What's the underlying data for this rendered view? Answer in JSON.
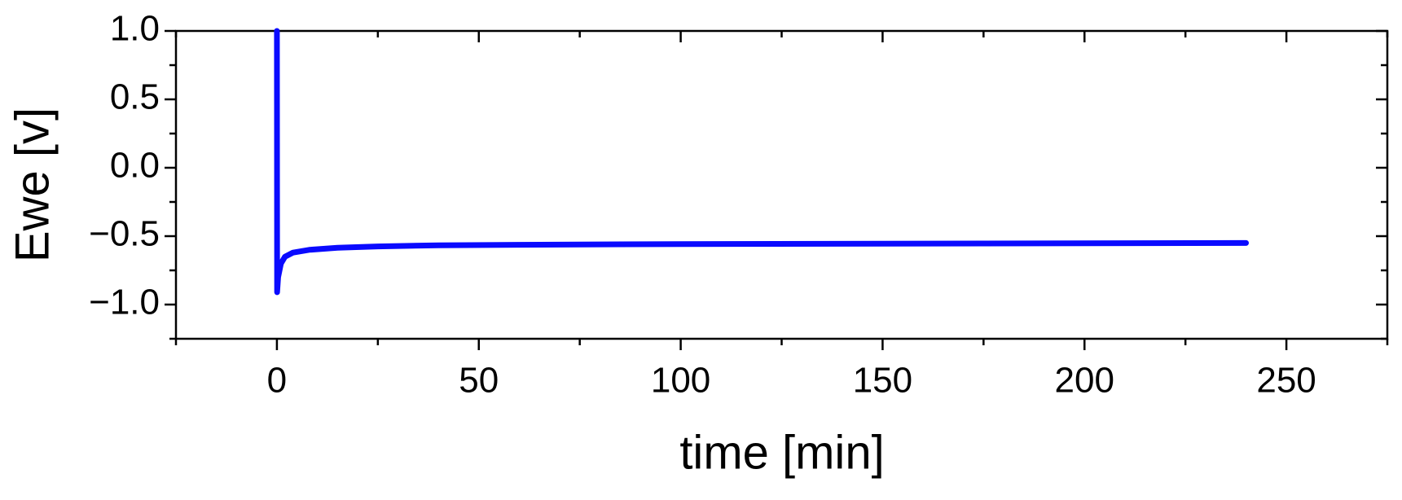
{
  "chart_data": {
    "type": "line",
    "xlabel": "time [min]",
    "ylabel": "Ewe [v]",
    "x": [
      0,
      0.05,
      0.3,
      1,
      2,
      4,
      8,
      15,
      25,
      40,
      60,
      100,
      150,
      200,
      240
    ],
    "series": [
      {
        "color": "#0a0aff",
        "values": [
          1.0,
          -0.91,
          -0.8,
          -0.7,
          -0.65,
          -0.62,
          -0.6,
          -0.585,
          -0.575,
          -0.567,
          -0.563,
          -0.558,
          -0.555,
          -0.552,
          -0.55
        ]
      }
    ],
    "xlim": [
      -25,
      275
    ],
    "ylim": [
      -1.25,
      1.0
    ],
    "xticks": [
      0,
      50,
      100,
      150,
      200,
      250
    ],
    "yticks": [
      {
        "value": -1.0,
        "label": "−1.0"
      },
      {
        "value": -0.5,
        "label": "−0.5"
      },
      {
        "value": 0.0,
        "label": "0.0"
      },
      0.5,
      {
        "value": 1.0,
        "label": "1.0"
      }
    ],
    "minor_ticks": true,
    "mirror_ticks": true,
    "grid": false
  }
}
